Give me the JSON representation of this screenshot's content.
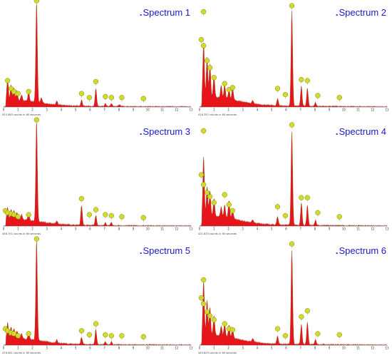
{
  "colors": {
    "fill": "#e8141b",
    "halo": "#f4b4c8",
    "outline": "#7a5a10",
    "marker_fill": "#d3db2a",
    "marker_stroke": "#7d8410",
    "title": "#1a1acc"
  },
  "chart_data": [
    {
      "type": "line",
      "title": "Spectrum 1",
      "footer": "453.565 counts in 60 seconds",
      "xlim": [
        0,
        13
      ],
      "x_ticks": [
        "0",
        "1",
        "2",
        "3",
        "4",
        "5",
        "6",
        "7",
        "8",
        "9",
        "10",
        "11",
        "12",
        "13"
      ],
      "peaks": [
        [
          0.28,
          0.22
        ],
        [
          0.52,
          0.16
        ],
        [
          0.72,
          0.12
        ],
        [
          0.93,
          0.1
        ],
        [
          1.25,
          0.06
        ],
        [
          1.74,
          0.09
        ],
        [
          2.29,
          1.0
        ],
        [
          2.62,
          0.05
        ],
        [
          3.69,
          0.04
        ],
        [
          5.41,
          0.06
        ],
        [
          6.4,
          0.18
        ],
        [
          7.06,
          0.03
        ],
        [
          7.48,
          0.03
        ],
        [
          8.04,
          0.02
        ]
      ],
      "markers": [
        {
          "x": 0.28,
          "y": 0.25
        },
        {
          "x": 0.52,
          "y": 0.17
        },
        {
          "x": 0.72,
          "y": 0.14
        },
        {
          "x": 1.0,
          "y": 0.12
        },
        {
          "x": 1.74,
          "y": 0.14
        },
        {
          "x": 2.29,
          "y": 1.05
        },
        {
          "x": 5.41,
          "y": 0.12
        },
        {
          "x": 5.95,
          "y": 0.08
        },
        {
          "x": 6.4,
          "y": 0.24
        },
        {
          "x": 7.06,
          "y": 0.09
        },
        {
          "x": 7.48,
          "y": 0.08
        },
        {
          "x": 8.2,
          "y": 0.08
        },
        {
          "x": 9.7,
          "y": 0.07
        }
      ]
    },
    {
      "type": "line",
      "title": "Spectrum 2",
      "footer": "418.352 counts in 60 seconds",
      "xlim": [
        0,
        13
      ],
      "x_ticks": [
        "0",
        "1",
        "2",
        "3",
        "4",
        "5",
        "6",
        "7",
        "8",
        "9",
        "10",
        "11",
        "12",
        "13"
      ],
      "peaks": [
        [
          0.28,
          0.55
        ],
        [
          0.52,
          0.4
        ],
        [
          0.72,
          0.33
        ],
        [
          1.0,
          0.22
        ],
        [
          1.5,
          0.12
        ],
        [
          1.74,
          0.14
        ],
        [
          2.04,
          0.1
        ],
        [
          2.29,
          0.12
        ],
        [
          3.69,
          0.03
        ],
        [
          5.41,
          0.07
        ],
        [
          6.4,
          0.95
        ],
        [
          7.06,
          0.2
        ],
        [
          7.48,
          0.18
        ],
        [
          8.04,
          0.04
        ]
      ],
      "markers": [
        {
          "x": 0.12,
          "y": 0.66
        },
        {
          "x": 0.28,
          "y": 0.6
        },
        {
          "x": 0.52,
          "y": 0.45
        },
        {
          "x": 0.72,
          "y": 0.38
        },
        {
          "x": 1.0,
          "y": 0.28
        },
        {
          "x": 1.74,
          "y": 0.22
        },
        {
          "x": 2.04,
          "y": 0.16
        },
        {
          "x": 2.29,
          "y": 0.18
        },
        {
          "x": 0.28,
          "y": 0.94
        },
        {
          "x": 5.41,
          "y": 0.17
        },
        {
          "x": 5.95,
          "y": 0.11
        },
        {
          "x": 6.4,
          "y": 1.0
        },
        {
          "x": 7.06,
          "y": 0.26
        },
        {
          "x": 7.48,
          "y": 0.25
        },
        {
          "x": 8.2,
          "y": 0.1
        },
        {
          "x": 9.7,
          "y": 0.08
        }
      ]
    },
    {
      "type": "line",
      "title": "Spectrum 3",
      "footer": "456.751 counts in 60 seconds",
      "xlim": [
        0,
        13
      ],
      "x_ticks": [
        "0",
        "1",
        "2",
        "3",
        "4",
        "5",
        "6",
        "7",
        "8",
        "9",
        "10",
        "11",
        "12",
        "13"
      ],
      "peaks": [
        [
          0.28,
          0.12
        ],
        [
          0.52,
          0.1
        ],
        [
          0.72,
          0.09
        ],
        [
          0.93,
          0.07
        ],
        [
          1.25,
          0.05
        ],
        [
          1.74,
          0.07
        ],
        [
          2.29,
          1.0
        ],
        [
          3.69,
          0.03
        ],
        [
          5.41,
          0.2
        ],
        [
          6.4,
          0.1
        ],
        [
          7.06,
          0.03
        ],
        [
          7.48,
          0.03
        ]
      ],
      "markers": [
        {
          "x": 0.12,
          "y": 0.14
        },
        {
          "x": 0.28,
          "y": 0.12
        },
        {
          "x": 0.52,
          "y": 0.11
        },
        {
          "x": 0.72,
          "y": 0.1
        },
        {
          "x": 1.0,
          "y": 0.08
        },
        {
          "x": 1.74,
          "y": 0.1
        },
        {
          "x": 2.29,
          "y": 1.05
        },
        {
          "x": 5.41,
          "y": 0.26
        },
        {
          "x": 5.95,
          "y": 0.1
        },
        {
          "x": 6.4,
          "y": 0.15
        },
        {
          "x": 7.06,
          "y": 0.1
        },
        {
          "x": 7.48,
          "y": 0.09
        },
        {
          "x": 8.2,
          "y": 0.08
        },
        {
          "x": 9.7,
          "y": 0.07
        }
      ]
    },
    {
      "type": "line",
      "title": "Spectrum 4",
      "footer": "421.833 counts in 60 seconds",
      "xlim": [
        0,
        13
      ],
      "x_ticks": [
        "0",
        "1",
        "2",
        "3",
        "4",
        "5",
        "6",
        "7",
        "8",
        "9",
        "10",
        "11",
        "12",
        "13"
      ],
      "peaks": [
        [
          0.28,
          0.6
        ],
        [
          0.52,
          0.3
        ],
        [
          0.72,
          0.25
        ],
        [
          1.0,
          0.18
        ],
        [
          1.5,
          0.1
        ],
        [
          1.74,
          0.12
        ],
        [
          2.04,
          0.18
        ],
        [
          2.29,
          0.1
        ],
        [
          3.69,
          0.03
        ],
        [
          5.41,
          0.08
        ],
        [
          6.4,
          0.94
        ],
        [
          7.06,
          0.22
        ],
        [
          7.48,
          0.2
        ],
        [
          8.04,
          0.05
        ]
      ],
      "markers": [
        {
          "x": 0.12,
          "y": 0.5
        },
        {
          "x": 0.28,
          "y": 0.4
        },
        {
          "x": 0.52,
          "y": 0.32
        },
        {
          "x": 0.72,
          "y": 0.28
        },
        {
          "x": 1.0,
          "y": 0.22
        },
        {
          "x": 1.74,
          "y": 0.3
        },
        {
          "x": 2.04,
          "y": 0.2
        },
        {
          "x": 2.29,
          "y": 0.14
        },
        {
          "x": 0.28,
          "y": 0.94
        },
        {
          "x": 5.41,
          "y": 0.18
        },
        {
          "x": 5.95,
          "y": 0.09
        },
        {
          "x": 6.4,
          "y": 1.0
        },
        {
          "x": 7.06,
          "y": 0.27
        },
        {
          "x": 7.48,
          "y": 0.27
        },
        {
          "x": 8.2,
          "y": 0.12
        },
        {
          "x": 9.7,
          "y": 0.08
        }
      ]
    },
    {
      "type": "line",
      "title": "Spectrum 5",
      "footer": "476.461 counts in 60 seconds",
      "xlim": [
        0,
        13
      ],
      "x_ticks": [
        "0",
        "1",
        "2",
        "3",
        "4",
        "5",
        "6",
        "7",
        "8",
        "9",
        "10",
        "11",
        "12",
        "13"
      ],
      "peaks": [
        [
          0.28,
          0.16
        ],
        [
          0.52,
          0.12
        ],
        [
          0.72,
          0.1
        ],
        [
          0.93,
          0.08
        ],
        [
          1.25,
          0.05
        ],
        [
          1.74,
          0.08
        ],
        [
          2.29,
          1.0
        ],
        [
          3.69,
          0.03
        ],
        [
          5.41,
          0.07
        ],
        [
          6.4,
          0.15
        ],
        [
          7.06,
          0.03
        ],
        [
          7.48,
          0.03
        ]
      ],
      "markers": [
        {
          "x": 0.12,
          "y": 0.15
        },
        {
          "x": 0.28,
          "y": 0.13
        },
        {
          "x": 0.52,
          "y": 0.11
        },
        {
          "x": 0.72,
          "y": 0.1
        },
        {
          "x": 1.0,
          "y": 0.08
        },
        {
          "x": 1.74,
          "y": 0.1
        },
        {
          "x": 2.29,
          "y": 1.05
        },
        {
          "x": 5.41,
          "y": 0.13
        },
        {
          "x": 5.95,
          "y": 0.09
        },
        {
          "x": 6.4,
          "y": 0.2
        },
        {
          "x": 7.06,
          "y": 0.09
        },
        {
          "x": 7.48,
          "y": 0.08
        },
        {
          "x": 8.2,
          "y": 0.08
        },
        {
          "x": 9.7,
          "y": 0.07
        }
      ]
    },
    {
      "type": "line",
      "title": "Spectrum 6",
      "footer": "449.829 counts in 60 seconds",
      "xlim": [
        0,
        13
      ],
      "x_ticks": [
        "0",
        "1",
        "2",
        "3",
        "4",
        "5",
        "6",
        "7",
        "8",
        "9",
        "10",
        "11",
        "12",
        "13"
      ],
      "peaks": [
        [
          0.28,
          0.55
        ],
        [
          0.52,
          0.35
        ],
        [
          0.72,
          0.28
        ],
        [
          1.0,
          0.2
        ],
        [
          1.5,
          0.1
        ],
        [
          1.74,
          0.13
        ],
        [
          2.04,
          0.12
        ],
        [
          2.29,
          0.1
        ],
        [
          3.69,
          0.03
        ],
        [
          5.41,
          0.08
        ],
        [
          6.4,
          0.94
        ],
        [
          7.06,
          0.2
        ],
        [
          7.48,
          0.22
        ],
        [
          8.04,
          0.05
        ]
      ],
      "markers": [
        {
          "x": 0.12,
          "y": 0.46
        },
        {
          "x": 0.28,
          "y": 0.4
        },
        {
          "x": 0.52,
          "y": 0.32
        },
        {
          "x": 0.72,
          "y": 0.28
        },
        {
          "x": 1.0,
          "y": 0.24
        },
        {
          "x": 1.74,
          "y": 0.2
        },
        {
          "x": 2.04,
          "y": 0.15
        },
        {
          "x": 2.29,
          "y": 0.14
        },
        {
          "x": 0.28,
          "y": 0.64
        },
        {
          "x": 5.41,
          "y": 0.15
        },
        {
          "x": 5.95,
          "y": 0.08
        },
        {
          "x": 6.4,
          "y": 1.0
        },
        {
          "x": 7.06,
          "y": 0.27
        },
        {
          "x": 7.48,
          "y": 0.33
        },
        {
          "x": 8.2,
          "y": 0.1
        },
        {
          "x": 9.7,
          "y": 0.09
        }
      ]
    }
  ]
}
